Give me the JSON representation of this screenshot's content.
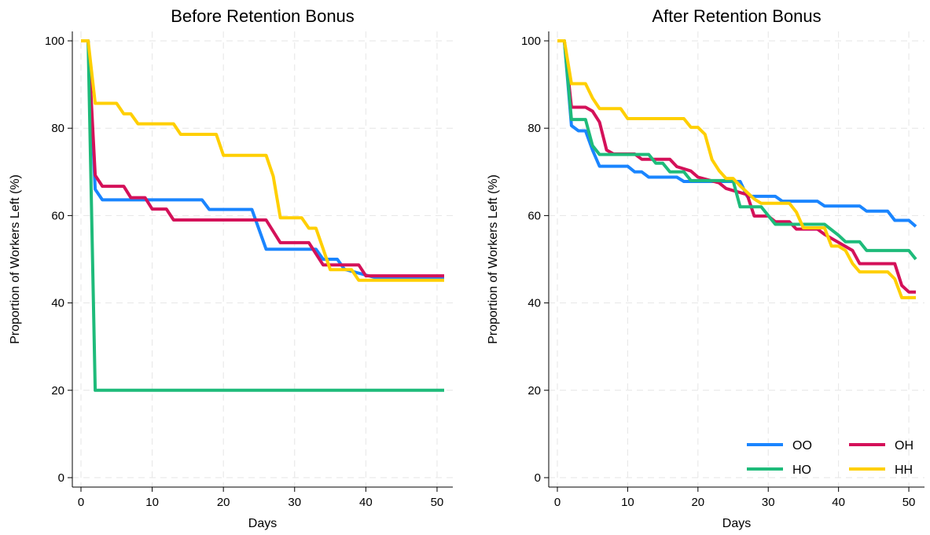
{
  "chart_data": [
    {
      "type": "line",
      "title": "Before Retention Bonus",
      "xlabel": "Days",
      "ylabel": "Proportion of Workers Left (%)",
      "xlim": [
        0,
        51
      ],
      "ylim": [
        0,
        100
      ],
      "xticks": [
        "0",
        "10",
        "20",
        "30",
        "40",
        "50"
      ],
      "yticks": [
        "0",
        "20",
        "40",
        "60",
        "80",
        "100"
      ],
      "grid": true,
      "series": [
        {
          "name": "OO",
          "color": "#1a85ff",
          "x": [
            0,
            1,
            2,
            3,
            17,
            18,
            24,
            26,
            30,
            33,
            34,
            36,
            37,
            42,
            51
          ],
          "y": [
            100,
            100,
            66,
            63.6,
            63.6,
            61.4,
            61.4,
            52.3,
            52.3,
            52.3,
            50,
            50,
            47.7,
            45.5,
            45.5
          ]
        },
        {
          "name": "OH",
          "color": "#d41159",
          "x": [
            0,
            1,
            2,
            3,
            6,
            7,
            9,
            10,
            12,
            13,
            26,
            28,
            32,
            34,
            35,
            37,
            39,
            40,
            51
          ],
          "y": [
            100,
            100,
            69.2,
            66.7,
            66.7,
            64.1,
            64.1,
            61.5,
            61.5,
            59,
            59,
            53.8,
            53.8,
            48.7,
            48.7,
            48.7,
            48.7,
            46.2,
            46.2
          ]
        },
        {
          "name": "HO",
          "color": "#1ebb7a",
          "x": [
            0,
            1,
            2,
            51
          ],
          "y": [
            100,
            100,
            20,
            20
          ]
        },
        {
          "name": "HH",
          "color": "#ffcf00",
          "x": [
            0,
            1,
            2,
            5,
            6,
            7,
            8,
            13,
            14,
            19,
            20,
            26,
            27,
            28,
            31,
            32,
            33,
            34,
            35,
            38,
            39,
            51
          ],
          "y": [
            100,
            100,
            85.7,
            85.7,
            83.3,
            83.3,
            81,
            81,
            78.6,
            78.6,
            73.8,
            73.8,
            69,
            59.5,
            59.5,
            57.1,
            57.1,
            52.4,
            47.6,
            47.6,
            45.2,
            45.2
          ]
        }
      ]
    },
    {
      "type": "line",
      "title": "After Retention Bonus",
      "xlabel": "Days",
      "ylabel": "Proportion of Workers Left (%)",
      "xlim": [
        0,
        51
      ],
      "ylim": [
        0,
        100
      ],
      "xticks": [
        "0",
        "10",
        "20",
        "30",
        "40",
        "50"
      ],
      "yticks": [
        "0",
        "20",
        "40",
        "60",
        "80",
        "100"
      ],
      "grid": true,
      "legend": {
        "position": "bottom-right",
        "columns": 2,
        "order": [
          "OO",
          "OH",
          "HO",
          "HH"
        ]
      },
      "series": [
        {
          "name": "OO",
          "color": "#1a85ff",
          "x": [
            0,
            1,
            2,
            3,
            4,
            5,
            6,
            10,
            11,
            12,
            13,
            17,
            18,
            26,
            27,
            31,
            32,
            37,
            38,
            43,
            44,
            47,
            48,
            50,
            51
          ],
          "y": [
            100,
            100,
            80.6,
            79.4,
            79.4,
            75,
            71.3,
            71.3,
            70,
            70,
            68.8,
            68.8,
            67.8,
            67.8,
            64.4,
            64.4,
            63.3,
            63.3,
            62.2,
            62.2,
            61,
            61,
            58.9,
            58.9,
            57.5
          ]
        },
        {
          "name": "OH",
          "color": "#d41159",
          "x": [
            0,
            1,
            2,
            4,
            5,
            6,
            7,
            8,
            11,
            12,
            16,
            17,
            19,
            20,
            23,
            24,
            27,
            28,
            30,
            31,
            33,
            34,
            37,
            38,
            42,
            43,
            48,
            49,
            50,
            51
          ],
          "y": [
            100,
            100,
            84.8,
            84.8,
            83.9,
            81.4,
            75,
            74.1,
            74.1,
            72.9,
            72.9,
            71.2,
            70.2,
            68.8,
            67.5,
            66.2,
            64.8,
            59.9,
            59.9,
            58.6,
            58.6,
            56.9,
            56.9,
            55.7,
            52,
            49,
            49,
            44,
            42.5,
            42.5
          ]
        },
        {
          "name": "HO",
          "color": "#1ebb7a",
          "x": [
            0,
            1,
            2,
            4,
            5,
            6,
            13,
            14,
            15,
            16,
            18,
            19,
            25,
            26,
            29,
            31,
            34,
            38,
            40,
            41,
            43,
            44,
            50,
            51
          ],
          "y": [
            100,
            100,
            82,
            82,
            76,
            74,
            74,
            72,
            72,
            70,
            70,
            68,
            68,
            62,
            62,
            58,
            58,
            58,
            55.5,
            54,
            54,
            52,
            52,
            50
          ]
        },
        {
          "name": "HH",
          "color": "#ffcf00",
          "x": [
            0,
            1,
            2,
            4,
            5,
            6,
            7,
            8,
            9,
            10,
            18,
            19,
            20,
            21,
            22,
            23,
            24,
            25,
            26,
            27,
            28,
            29,
            33,
            34,
            35,
            38,
            39,
            40,
            41,
            42,
            43,
            47,
            48,
            49,
            51
          ],
          "y": [
            100,
            100,
            90.2,
            90.2,
            86.9,
            84.5,
            84.5,
            84.5,
            84.5,
            82.2,
            82.2,
            80.2,
            80.2,
            78.6,
            72.8,
            70.3,
            68.5,
            68.5,
            66.8,
            65.3,
            63.8,
            62.8,
            62.8,
            60.8,
            57.2,
            57.2,
            53,
            53,
            52,
            49,
            47.1,
            47.1,
            45.5,
            41.2,
            41.2
          ]
        }
      ]
    }
  ]
}
